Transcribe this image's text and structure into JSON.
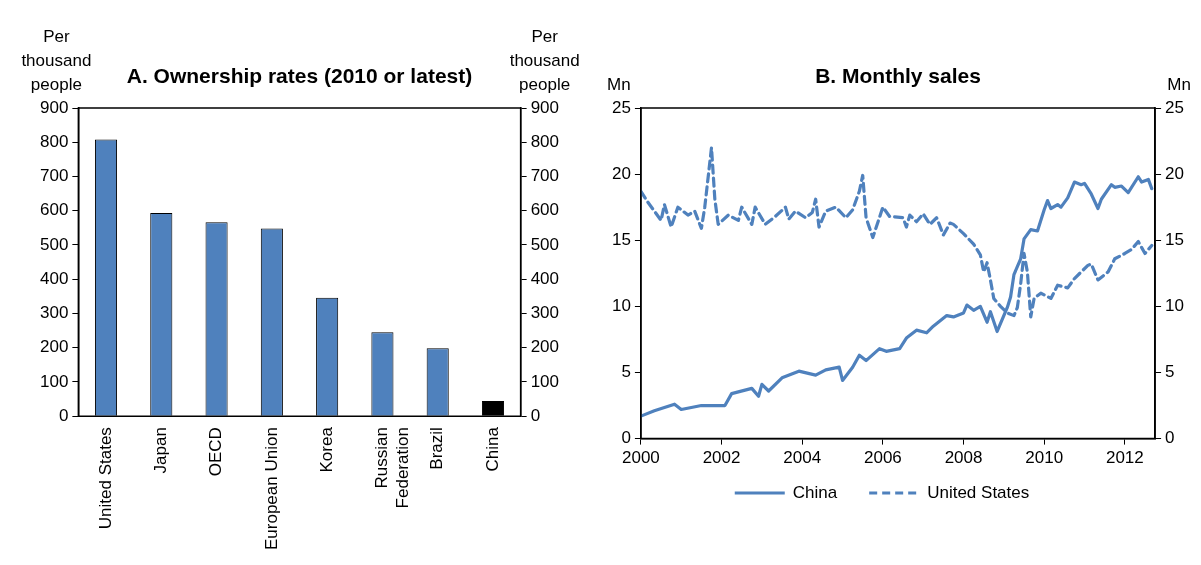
{
  "chart_data": [
    {
      "type": "bar",
      "title": "A. Ownership rates (2010 or latest)",
      "ylabel": "Per thousand people",
      "y2label": "Per thousand people",
      "categories": [
        "United States",
        "Japan",
        "OECD",
        "European Union",
        "Korea",
        "Russian Federation",
        "Brazil",
        "China"
      ],
      "values": [
        808,
        593,
        566,
        548,
        346,
        245,
        198,
        44
      ],
      "colors": [
        "#4f81bd",
        "#4f81bd",
        "#4f81bd",
        "#4f81bd",
        "#4f81bd",
        "#4f81bd",
        "#4f81bd",
        "#000000"
      ],
      "ylim": [
        0,
        900
      ],
      "yticks": [
        0,
        100,
        200,
        300,
        400,
        500,
        600,
        700,
        800,
        900
      ],
      "y2lim": [
        0,
        900
      ],
      "y2ticks": [
        0,
        100,
        200,
        300,
        400,
        500,
        600,
        700,
        800,
        900
      ]
    },
    {
      "type": "line",
      "title": "B. Monthly sales",
      "ylabel": "Mn",
      "y2label": "Mn",
      "legend": "bottom",
      "marker": "none",
      "xlim": [
        "2000-01",
        "2012-10"
      ],
      "xticks": [
        "2000",
        "2002",
        "2004",
        "2006",
        "2008",
        "2010",
        "2012"
      ],
      "ylim": [
        0,
        25
      ],
      "yticks": [
        0,
        5,
        10,
        15,
        20,
        25
      ],
      "y2lim": [
        0,
        25
      ],
      "y2ticks": [
        0,
        5,
        10,
        15,
        20,
        25
      ],
      "series": [
        {
          "name": "China",
          "color": "#4f81bd",
          "line_style": "solid",
          "x": [
            "2000-01",
            "2000-05",
            "2000-11",
            "2001-01",
            "2001-07",
            "2002-02",
            "2002-04",
            "2002-10",
            "2002-12",
            "2003-01",
            "2003-03",
            "2003-07",
            "2003-12",
            "2004-05",
            "2004-08",
            "2004-12",
            "2005-01",
            "2005-04",
            "2005-06",
            "2005-08",
            "2005-12",
            "2006-02",
            "2006-06",
            "2006-08",
            "2006-11",
            "2007-02",
            "2007-04",
            "2007-08",
            "2007-10",
            "2008-01",
            "2008-02",
            "2008-04",
            "2008-06",
            "2008-08",
            "2008-09",
            "2008-11",
            "2009-02",
            "2009-03",
            "2009-04",
            "2009-06",
            "2009-07",
            "2009-09",
            "2009-11",
            "2010-01",
            "2010-02",
            "2010-03",
            "2010-05",
            "2010-06",
            "2010-08",
            "2010-10",
            "2010-12",
            "2011-01",
            "2011-03",
            "2011-05",
            "2011-06",
            "2011-09",
            "2011-10",
            "2011-12",
            "2012-02",
            "2012-05",
            "2012-06",
            "2012-08",
            "2012-09"
          ],
          "values": [
            1.7,
            2.1,
            2.6,
            2.2,
            2.5,
            2.5,
            3.4,
            3.8,
            3.2,
            4.1,
            3.6,
            4.6,
            5.1,
            4.8,
            5.2,
            5.4,
            4.4,
            5.4,
            6.3,
            5.9,
            6.8,
            6.6,
            6.8,
            7.6,
            8.2,
            8.0,
            8.5,
            9.3,
            9.2,
            9.5,
            10.1,
            9.7,
            10.0,
            8.8,
            9.6,
            8.1,
            9.9,
            10.7,
            12.4,
            13.6,
            15.1,
            15.8,
            15.7,
            17.3,
            18.0,
            17.4,
            17.7,
            17.5,
            18.2,
            19.4,
            19.2,
            19.3,
            18.5,
            17.4,
            18.1,
            19.2,
            19.0,
            19.1,
            18.6,
            19.8,
            19.4,
            19.6,
            18.9
          ]
        },
        {
          "name": "United States",
          "color": "#4f81bd",
          "line_style": "dashed",
          "x": [
            "2000-01",
            "2000-03",
            "2000-07",
            "2000-08",
            "2000-10",
            "2000-12",
            "2001-03",
            "2001-05",
            "2001-07",
            "2001-08",
            "2001-10",
            "2001-11",
            "2001-12",
            "2002-03",
            "2002-06",
            "2002-07",
            "2002-10",
            "2002-11",
            "2003-02",
            "2003-05",
            "2003-08",
            "2003-09",
            "2003-11",
            "2004-02",
            "2004-04",
            "2004-05",
            "2004-06",
            "2004-08",
            "2004-11",
            "2005-02",
            "2005-04",
            "2005-06",
            "2005-07",
            "2005-08",
            "2005-10",
            "2006-01",
            "2006-03",
            "2006-07",
            "2006-08",
            "2006-09",
            "2006-11",
            "2007-01",
            "2007-03",
            "2007-05",
            "2007-07",
            "2007-09",
            "2007-10",
            "2008-01",
            "2008-04",
            "2008-06",
            "2008-07",
            "2008-08",
            "2008-09",
            "2008-10",
            "2008-12",
            "2009-02",
            "2009-04",
            "2009-05",
            "2009-06",
            "2009-07",
            "2009-08",
            "2009-09",
            "2009-10",
            "2009-12",
            "2010-03",
            "2010-05",
            "2010-08",
            "2010-10",
            "2011-02",
            "2011-03",
            "2011-05",
            "2011-08",
            "2011-10",
            "2012-01",
            "2012-03",
            "2012-05",
            "2012-07",
            "2012-09"
          ],
          "values": [
            18.7,
            17.9,
            16.5,
            17.7,
            16.0,
            17.5,
            16.9,
            17.2,
            15.9,
            17.5,
            22.0,
            18.1,
            16.2,
            16.9,
            16.5,
            17.5,
            16.2,
            17.5,
            16.2,
            16.8,
            17.5,
            16.6,
            17.2,
            16.7,
            17.1,
            18.1,
            16.0,
            17.2,
            17.5,
            16.7,
            17.3,
            18.7,
            19.9,
            16.7,
            15.2,
            17.5,
            16.8,
            16.7,
            16.0,
            16.9,
            16.4,
            17.0,
            16.2,
            16.7,
            15.4,
            16.3,
            16.2,
            15.5,
            14.7,
            13.9,
            12.6,
            13.3,
            12.0,
            10.6,
            10.0,
            9.5,
            9.3,
            9.9,
            11.7,
            14.0,
            12.6,
            9.2,
            10.6,
            11.0,
            10.6,
            11.6,
            11.4,
            12.1,
            13.1,
            13.2,
            12.0,
            12.6,
            13.6,
            14.0,
            14.3,
            14.9,
            14.0,
            14.6
          ]
        }
      ]
    }
  ]
}
